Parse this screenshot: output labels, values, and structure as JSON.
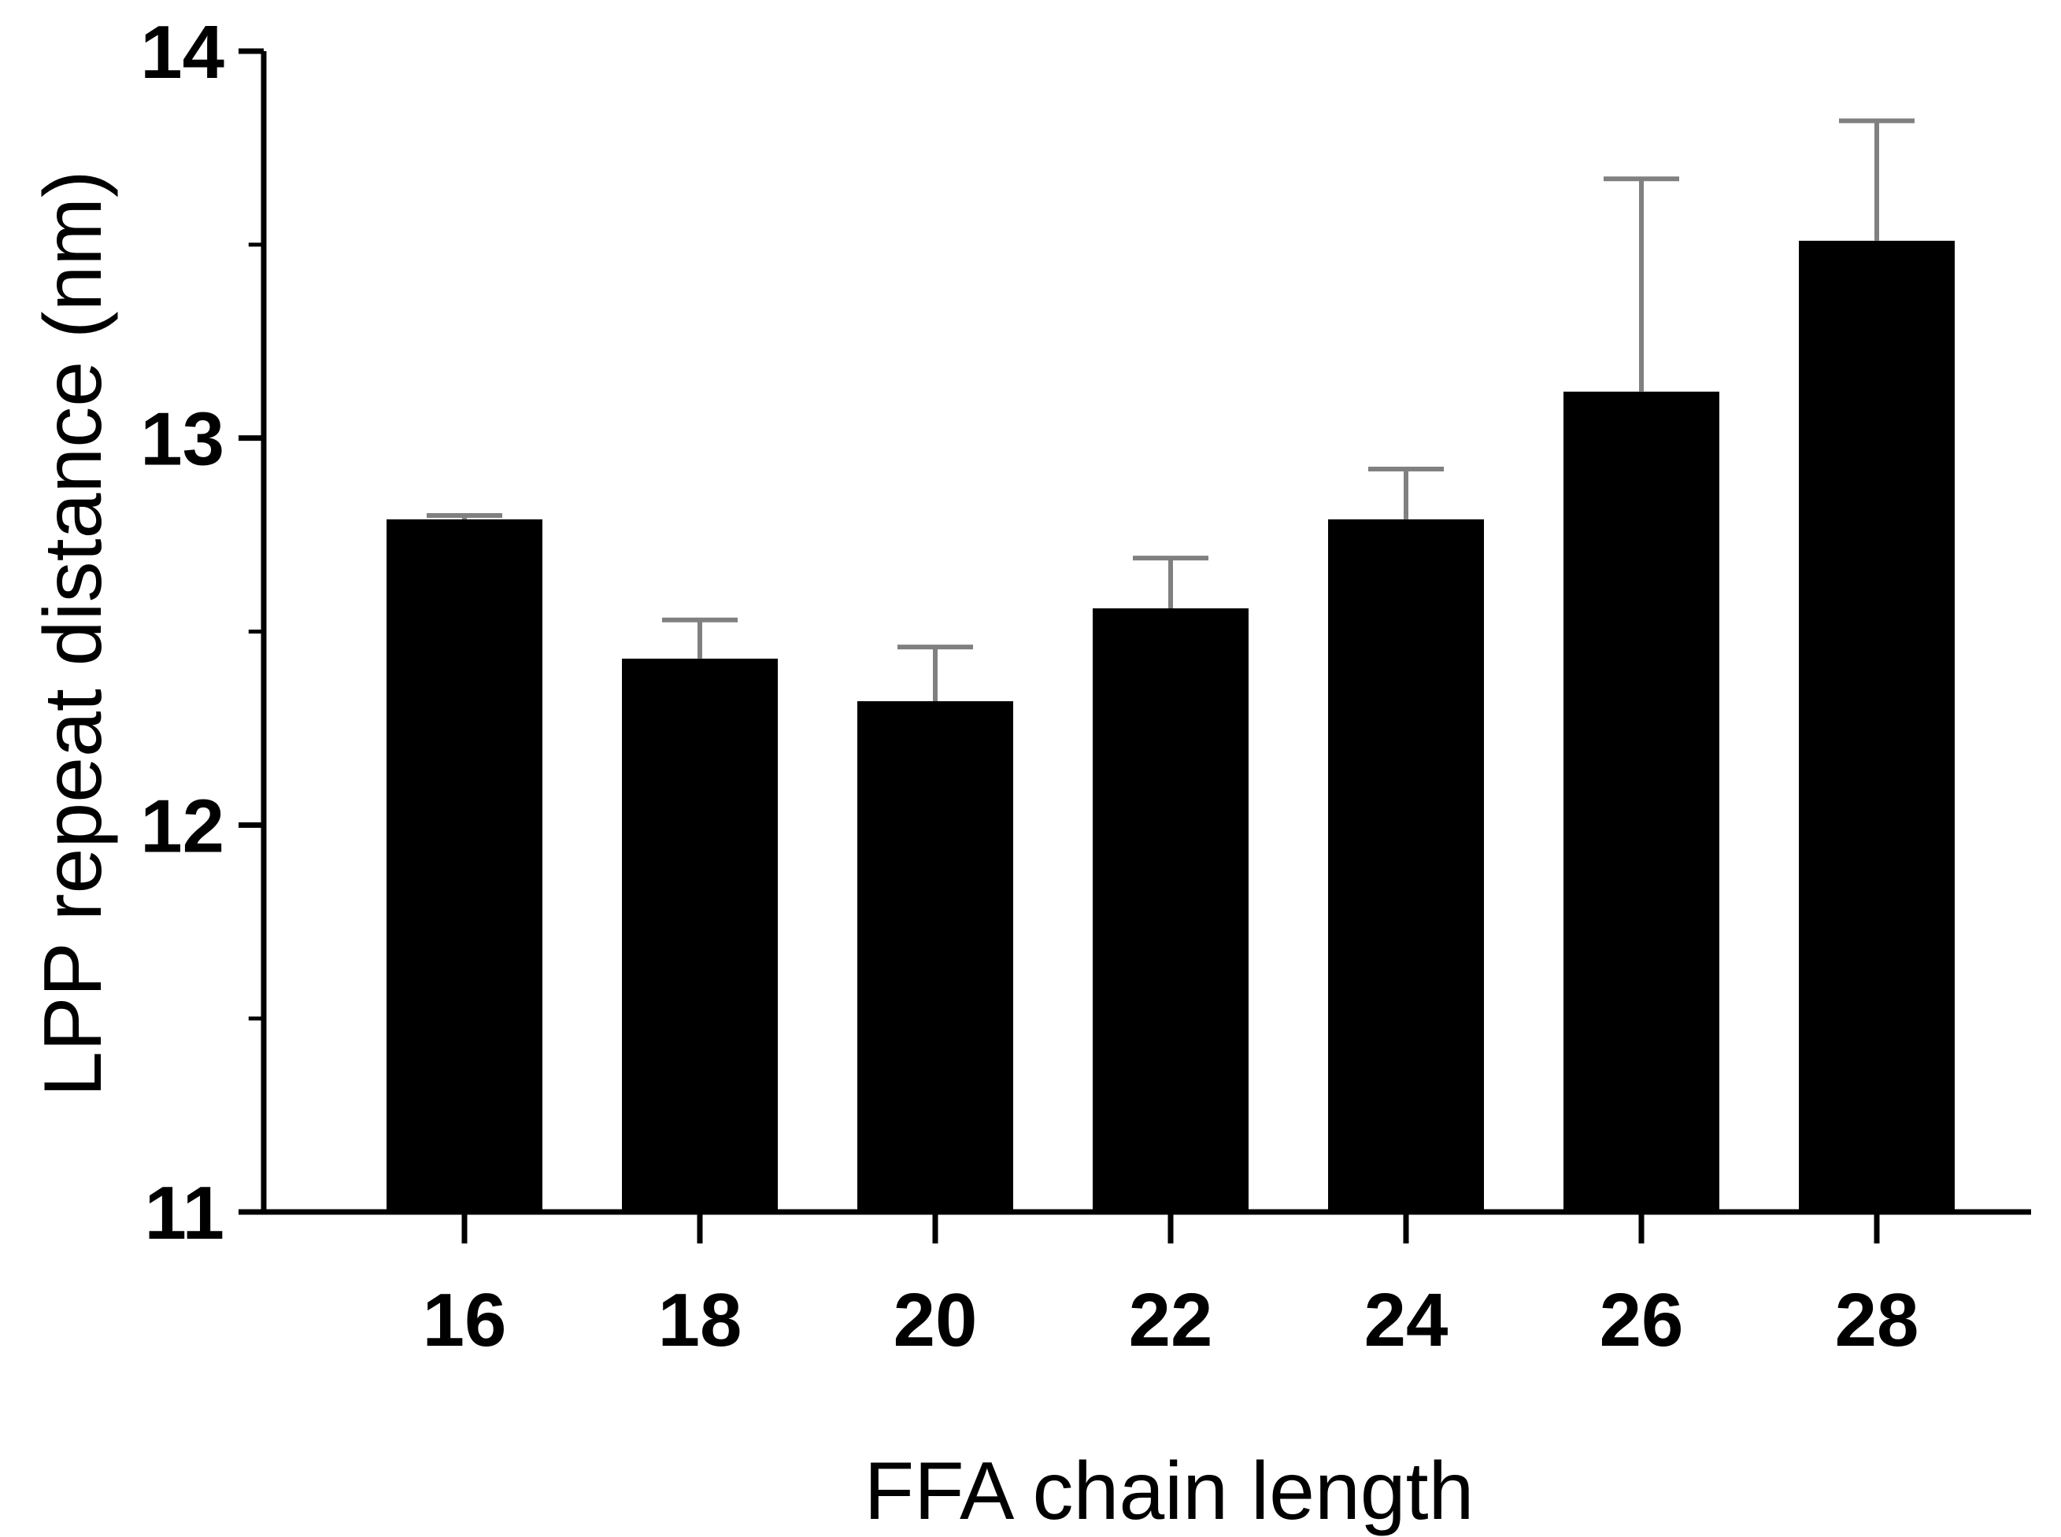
{
  "chart_data": {
    "type": "bar",
    "title": "",
    "xlabel": "FFA chain length",
    "ylabel": "LPP repeat distance (nm)",
    "categories": [
      "16",
      "18",
      "20",
      "22",
      "24",
      "26",
      "28"
    ],
    "values": [
      12.79,
      12.43,
      12.32,
      12.56,
      12.79,
      13.12,
      13.51
    ],
    "error_upper": [
      0.01,
      0.1,
      0.14,
      0.13,
      0.13,
      0.55,
      0.31
    ],
    "ylim": [
      11,
      14
    ],
    "yticks": [
      "11",
      "12",
      "13",
      "14"
    ],
    "grid": false,
    "legend": "none",
    "colors": {
      "bar": "#000000",
      "error_bar": "#808080",
      "axis": "#000000"
    }
  }
}
